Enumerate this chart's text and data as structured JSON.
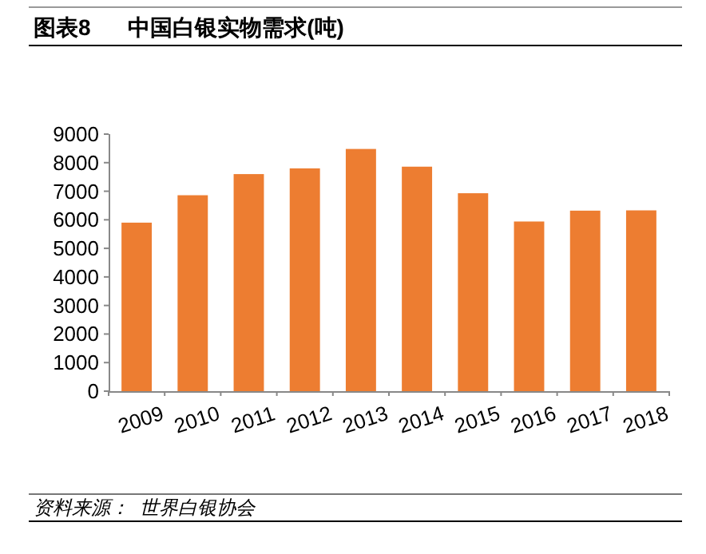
{
  "chart_data": {
    "type": "bar",
    "title": "图表8      中国白银实物需求(吨)",
    "categories": [
      "2009",
      "2010",
      "2011",
      "2012",
      "2013",
      "2014",
      "2015",
      "2016",
      "2017",
      "2018"
    ],
    "values": [
      5900,
      6860,
      7600,
      7800,
      8480,
      7860,
      6930,
      5940,
      6320,
      6330
    ],
    "color": "#ed7d31",
    "ylim": [
      0,
      9000
    ],
    "yticks": [
      0,
      1000,
      2000,
      3000,
      4000,
      5000,
      6000,
      7000,
      8000,
      9000
    ],
    "annotations": [
      "资料来源：  世界白银协会"
    ]
  }
}
